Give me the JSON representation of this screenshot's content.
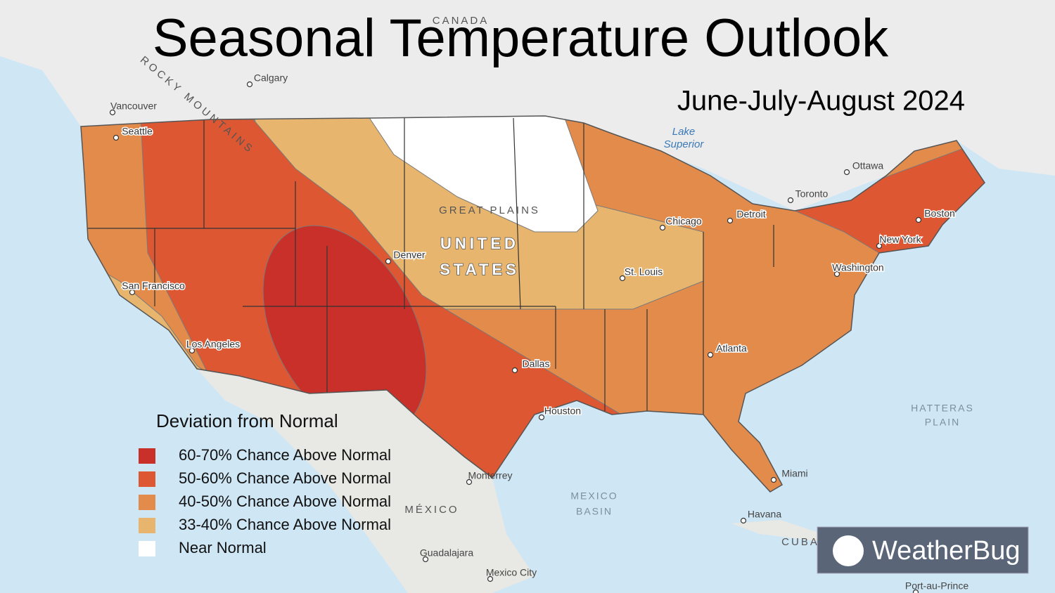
{
  "title": "Seasonal Temperature Outlook",
  "subtitle": "June-July-August 2024",
  "legend": {
    "title": "Deviation from Normal",
    "items": [
      {
        "label": "60-70% Chance Above Normal",
        "color": "#c9302a"
      },
      {
        "label": "50-60% Chance Above Normal",
        "color": "#dc5732"
      },
      {
        "label": "40-50% Chance Above Normal",
        "color": "#e38b4b"
      },
      {
        "label": "33-40% Chance Above Normal",
        "color": "#e8b56e"
      },
      {
        "label": "Near Normal",
        "color": "#ffffff"
      }
    ]
  },
  "places": [
    "CANADA",
    "ROCKY MOUNTAINS",
    "Calgary",
    "Vancouver",
    "Seattle",
    "San Francisco",
    "Los Angeles",
    "Denver",
    "GREAT PLAINS",
    "UNITED",
    "STATES",
    "Lake",
    "Superior",
    "Ottawa",
    "Toronto",
    "Detroit",
    "Chicago",
    "St. Louis",
    "Boston",
    "New York",
    "Washington",
    "Atlanta",
    "Dallas",
    "Houston",
    "Miami",
    "Havana",
    "CUBA",
    "MEXICO",
    "BASIN",
    "MÉXICO",
    "Monterrey",
    "Guadalajara",
    "Mexico City",
    "Port-au-Prince",
    "HATTERAS",
    "PLAIN"
  ],
  "logo": "WeatherBug"
}
